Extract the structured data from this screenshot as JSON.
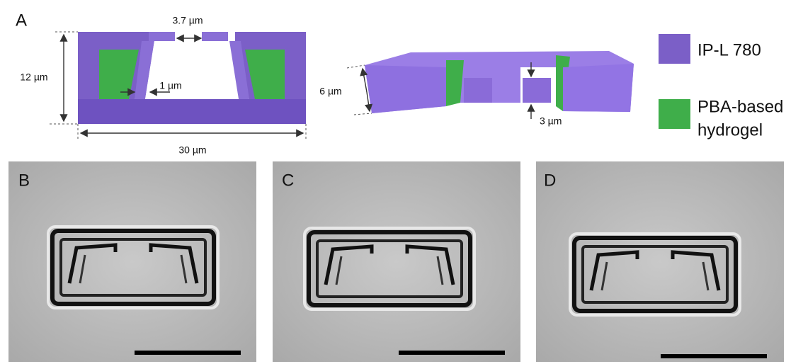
{
  "panels": {
    "a": {
      "label": "A",
      "gap": "3.7 µm",
      "height": "12 µm",
      "wall": "1 µm",
      "width": "30 µm",
      "height_3d": "6 µm",
      "step": "3 µm"
    },
    "b": {
      "label": "B"
    },
    "c": {
      "label": "C"
    },
    "d": {
      "label": "D"
    }
  },
  "legend": [
    {
      "lines": [
        "IP-L 780"
      ]
    },
    {
      "lines": [
        "PBA-based",
        "hydrogel"
      ]
    }
  ]
}
